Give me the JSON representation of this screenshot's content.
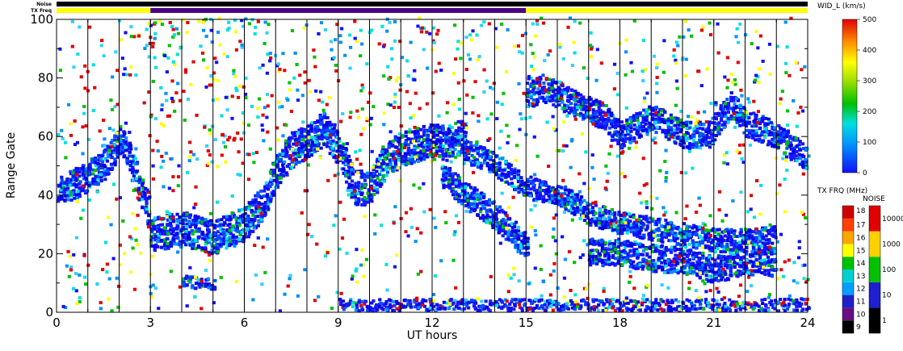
{
  "chart_data": {
    "type": "heatmap",
    "xlabel": "UT hours",
    "ylabel": "Range Gate",
    "xlim": [
      0,
      24
    ],
    "ylim": [
      0,
      100
    ],
    "x_ticks": [
      0,
      3,
      6,
      9,
      12,
      15,
      18,
      21,
      24
    ],
    "y_ticks": [
      0,
      20,
      40,
      60,
      80,
      100
    ],
    "x_tick_labels": [
      "0",
      "3",
      "6",
      "9",
      "12",
      "15",
      "18",
      "21",
      "24"
    ],
    "y_tick_labels": [
      "0",
      "20",
      "40",
      "60",
      "80",
      "100"
    ],
    "scan_boundaries_ut": [
      1,
      2,
      3,
      4,
      5,
      6,
      7,
      8,
      9,
      10,
      11,
      12,
      13,
      14,
      15,
      16,
      17,
      18,
      19,
      20,
      21,
      22,
      23
    ],
    "top_bars": {
      "noise_label": "Noise",
      "txfreq_label": "TX Freq",
      "noise_color": "#000000",
      "txfreq_segments": [
        {
          "start": 0,
          "end": 3,
          "color": "#ffff00"
        },
        {
          "start": 3,
          "end": 15,
          "color": "#4b0082"
        },
        {
          "start": 15,
          "end": 24,
          "color": "#ffff00"
        }
      ]
    },
    "colorbars": {
      "width": {
        "title": "WID_L (km/s)",
        "ticks": [
          "0",
          "100",
          "200",
          "300",
          "400",
          "500"
        ],
        "range": [
          0,
          500
        ]
      },
      "txfreq": {
        "title": "TX FRQ (MHz)",
        "ticks": [
          "9",
          "10",
          "11",
          "12",
          "13",
          "14",
          "15",
          "16",
          "17",
          "18"
        ],
        "colors": [
          "#000000",
          "#6a0d83",
          "#2020c8",
          "#00a0ff",
          "#00d0d0",
          "#00c000",
          "#ffff00",
          "#ffa500",
          "#ff4000",
          "#d00000"
        ]
      },
      "noise": {
        "title": "NOISE",
        "ticks": [
          "1",
          "10",
          "100",
          "1000",
          "10000"
        ],
        "colors": [
          "#000000",
          "#2020d0",
          "#00c000",
          "#ffd000",
          "#e00000"
        ]
      }
    },
    "bands": [
      {
        "name": "",
        "points": [
          [
            0.0,
            41
          ],
          [
            0.5,
            43
          ],
          [
            1.0,
            46
          ],
          [
            1.5,
            50
          ],
          [
            1.8,
            55
          ],
          [
            2.0,
            58
          ],
          [
            2.3,
            53
          ],
          [
            2.6,
            42
          ],
          [
            3.0,
            32
          ]
        ],
        "thickness": 8
      },
      {
        "name": "",
        "points": [
          [
            3.0,
            26
          ],
          [
            4.0,
            28
          ],
          [
            5.0,
            25
          ],
          [
            6.0,
            30
          ],
          [
            6.6,
            37
          ],
          [
            7.0,
            48
          ],
          [
            7.5,
            55
          ],
          [
            8.0,
            58
          ],
          [
            8.5,
            62
          ],
          [
            9.0,
            55
          ],
          [
            9.5,
            42
          ],
          [
            10.0,
            42
          ],
          [
            10.5,
            52
          ],
          [
            11.0,
            55
          ],
          [
            11.5,
            57
          ],
          [
            12.0,
            58
          ],
          [
            12.5,
            57
          ],
          [
            13.0,
            60
          ]
        ],
        "thickness": 9
      },
      {
        "name": "",
        "points": [
          [
            12.3,
            46
          ],
          [
            13.0,
            40
          ],
          [
            14.0,
            32
          ],
          [
            14.6,
            26
          ],
          [
            15.0,
            21
          ]
        ],
        "thickness": 7
      },
      {
        "name": "",
        "points": [
          [
            13.0,
            55
          ],
          [
            14.0,
            50
          ],
          [
            15.0,
            42
          ],
          [
            16.0,
            40
          ],
          [
            17.0,
            33
          ],
          [
            18.0,
            30
          ],
          [
            19.0,
            28
          ],
          [
            20.0,
            26
          ],
          [
            21.0,
            24
          ],
          [
            22.0,
            24
          ],
          [
            23.0,
            25
          ]
        ],
        "thickness": 6
      },
      {
        "name": "",
        "points": [
          [
            17.0,
            20
          ],
          [
            18.0,
            20
          ],
          [
            19.0,
            18
          ],
          [
            20.0,
            17
          ],
          [
            21.0,
            14
          ],
          [
            22.0,
            17
          ],
          [
            23.0,
            16
          ]
        ],
        "thickness": 7
      },
      {
        "name": "",
        "points": [
          [
            15.0,
            73
          ],
          [
            15.5,
            76
          ],
          [
            17.5,
            66
          ],
          [
            18.0,
            60
          ],
          [
            19.0,
            66
          ],
          [
            20.0,
            60
          ],
          [
            20.8,
            60
          ],
          [
            21.5,
            70
          ],
          [
            22.0,
            64
          ],
          [
            23.0,
            60
          ],
          [
            23.5,
            55
          ],
          [
            24.0,
            52
          ]
        ],
        "thickness": 7
      },
      {
        "name": "",
        "points": [
          [
            4.0,
            10
          ],
          [
            5.0,
            9
          ]
        ],
        "thickness": 3
      }
    ]
  }
}
